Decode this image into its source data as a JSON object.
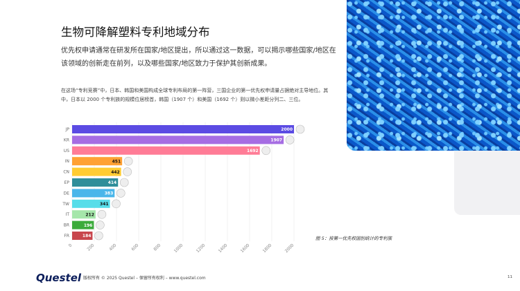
{
  "page": {
    "title": "生物可降解塑料专利地域分布",
    "intro": "优先权申请通常在研发所在国家/地区提出，所以通过这一数据，可以揭示哪些国家/地区在该领域的创新走在前列，以及哪些国家/地区致力于保护其创新成果。",
    "paragraph": "在这场“专利竞赛”中，日本、韩国和美国构成全球专利布局的第一阵营，三国企业的第一优先权申请量占据绝对主导地位。其中，日本以 2000 个专利族的规模位居榜首，韩国（1907 个）和美国（1692 个）则以微小差距分列二、三位。",
    "caption": "图 5：按第一优先权国别统计的专利族",
    "logo": "Questel",
    "copyright": "版权所有 © 2025 Questel – 保留所有权利 – www.questel.com",
    "page_number": "11"
  },
  "chart_data": {
    "type": "bar",
    "orientation": "horizontal",
    "categories": [
      "JP",
      "KR",
      "US",
      "IN",
      "CN",
      "EP",
      "DE",
      "TW",
      "IT",
      "BR",
      "FR"
    ],
    "values": [
      2000,
      1907,
      1692,
      451,
      442,
      414,
      383,
      341,
      212,
      196,
      184
    ],
    "colors": [
      "#5b4be3",
      "#a66de3",
      "#ff7c96",
      "#ffa133",
      "#ffcc33",
      "#2f8e9a",
      "#4ab6ea",
      "#57dde9",
      "#a5e6aa",
      "#3cab3b",
      "#c8464d"
    ],
    "xlim": [
      0,
      2000
    ],
    "xticks": [
      0,
      200,
      400,
      600,
      800,
      1000,
      1200,
      1400,
      1600,
      1800,
      2000
    ],
    "grid": true,
    "flag_markers": true
  }
}
